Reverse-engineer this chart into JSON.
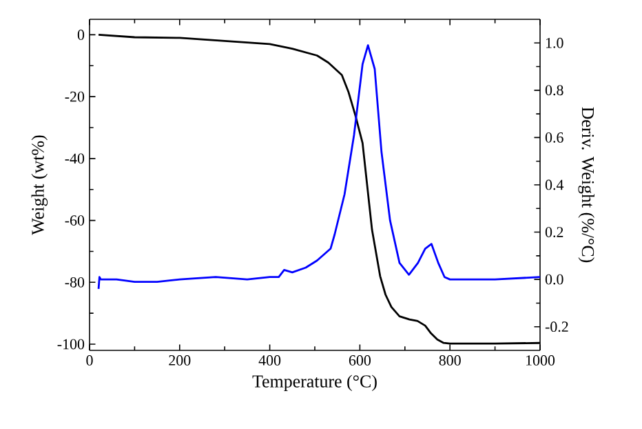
{
  "chart_data": {
    "type": "line",
    "xlabel": "Temperature (°C)",
    "ylabel": "Weight (wt%)",
    "y2label": "Deriv. Weight (%/°C)",
    "xlim": [
      0,
      1000
    ],
    "xticks": [
      0,
      200,
      400,
      600,
      800,
      1000
    ],
    "ylim": [
      -102,
      5
    ],
    "yticks": [
      -100,
      -80,
      -60,
      -40,
      -20,
      0
    ],
    "y2lim": [
      -0.3,
      1.1
    ],
    "y2ticks": [
      -0.2,
      {
        "value": 0,
        "label": "0.0"
      },
      0.2,
      0.4,
      0.6,
      0.8,
      {
        "value": 1,
        "label": "1.0"
      }
    ],
    "grid": false,
    "marker": "none",
    "line_style": "solid",
    "series": [
      {
        "color": "#000000",
        "x": [
          20,
          100,
          200,
          300,
          400,
          450,
          505,
          530,
          560,
          575,
          590,
          606,
          627,
          645,
          657,
          670,
          688,
          710,
          728,
          745,
          758,
          772,
          786,
          800,
          900,
          1000
        ],
        "values": [
          0,
          -0.8,
          -1,
          -2,
          -3,
          -4.5,
          -6.7,
          -9,
          -13,
          -18.6,
          -26,
          -35,
          -63,
          -78,
          -84,
          -88,
          -91,
          -92,
          -92.5,
          -94,
          -96.5,
          -98.5,
          -99.6,
          -99.8,
          -99.8,
          -99.6
        ]
      },
      {
        "color": "#0000ff",
        "axis": "y2",
        "x": [
          20,
          22,
          25,
          60,
          100,
          150,
          200,
          280,
          350,
          400,
          420,
          432,
          450,
          480,
          505,
          535,
          544,
          566,
          587,
          606,
          618,
          633,
          648,
          667,
          688,
          709,
          729,
          745,
          759,
          774,
          788,
          800,
          900,
          1000
        ],
        "values": [
          -0.04,
          0.01,
          0.0,
          0.0,
          -0.01,
          -0.01,
          0.0,
          0.01,
          0.0,
          0.01,
          0.01,
          0.04,
          0.03,
          0.05,
          0.08,
          0.13,
          0.19,
          0.36,
          0.61,
          0.91,
          0.99,
          0.89,
          0.54,
          0.25,
          0.07,
          0.02,
          0.07,
          0.13,
          0.15,
          0.07,
          0.01,
          0.0,
          0.0,
          0.01
        ]
      }
    ]
  }
}
